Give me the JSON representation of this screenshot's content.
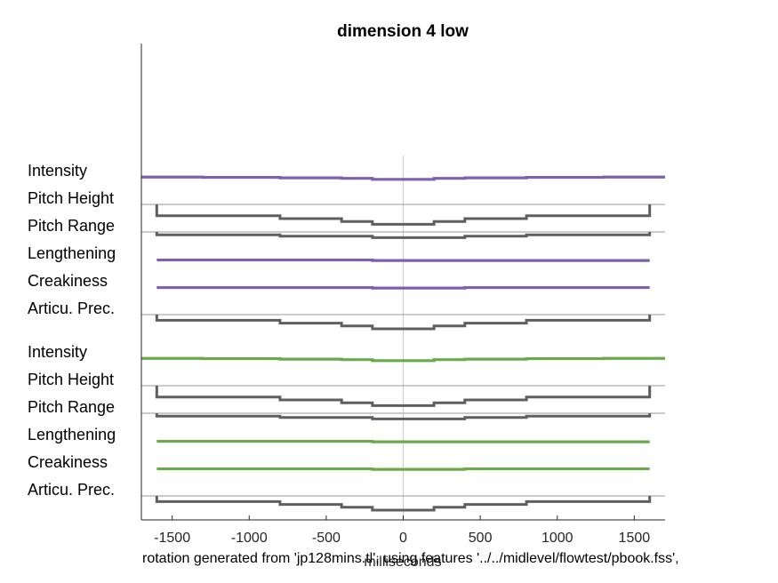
{
  "chart_data": {
    "type": "line",
    "title": "dimension  4 low",
    "xlabel": "milliseconds",
    "caption": "rotation generated from 'jp128mins.tl', using features '../../midlevel/flowtest/pbook.fss',",
    "xlim": [
      -1700,
      1700
    ],
    "x_ticks": [
      -1500,
      -1000,
      -500,
      0,
      500,
      1000,
      1500
    ],
    "vertical_line_at": 0,
    "colors": {
      "purple": "#7f5fb0",
      "green": "#6aaa4a",
      "gray": "#5f5f5f",
      "baseline": "#9a9a9a",
      "zeroline": "#d0d0d0"
    },
    "groups": [
      {
        "name": "upper",
        "rows": [
          {
            "label": "Intensity",
            "color": "purple",
            "bracket": false,
            "segments": [
              [
                -1700,
                -1300,
                0.25
              ],
              [
                -1300,
                -800,
                0.5
              ],
              [
                -800,
                -400,
                1
              ],
              [
                -400,
                -200,
                1.5
              ],
              [
                -200,
                0,
                2.5
              ],
              [
                0,
                200,
                2.5
              ],
              [
                200,
                400,
                1.5
              ],
              [
                400,
                800,
                1
              ],
              [
                800,
                1300,
                0.5
              ],
              [
                1300,
                1700,
                0.25
              ]
            ]
          },
          {
            "label": "Pitch Height",
            "color": "gray",
            "bracket": true,
            "segments": [
              [
                -1600,
                -800,
                4
              ],
              [
                -800,
                -400,
                5
              ],
              [
                -400,
                -200,
                6
              ],
              [
                -200,
                200,
                7
              ],
              [
                200,
                400,
                6
              ],
              [
                400,
                800,
                5
              ],
              [
                800,
                1600,
                4
              ]
            ]
          },
          {
            "label": "Pitch Range",
            "color": "gray",
            "bracket": true,
            "segments": [
              [
                -1600,
                -800,
                1
              ],
              [
                -800,
                -200,
                1.5
              ],
              [
                -200,
                400,
                2
              ],
              [
                400,
                800,
                1.5
              ],
              [
                800,
                1600,
                1
              ]
            ]
          },
          {
            "label": "Lengthening",
            "color": "purple",
            "bracket": false,
            "segments": [
              [
                -1600,
                -800,
                0.5
              ],
              [
                -800,
                -200,
                0.5
              ],
              [
                -200,
                400,
                1
              ],
              [
                400,
                800,
                1
              ],
              [
                800,
                1600,
                1
              ]
            ]
          },
          {
            "label": "Creakiness",
            "color": "purple",
            "bracket": false,
            "segments": [
              [
                -1600,
                -800,
                0.5
              ],
              [
                -800,
                -200,
                0.5
              ],
              [
                -200,
                400,
                1
              ],
              [
                400,
                800,
                0.5
              ],
              [
                800,
                1600,
                0.5
              ]
            ]
          },
          {
            "label": "Articu. Prec.",
            "color": "gray",
            "bracket": true,
            "segments": [
              [
                -1600,
                -800,
                2
              ],
              [
                -800,
                -400,
                3
              ],
              [
                -400,
                -200,
                4
              ],
              [
                -200,
                200,
                5
              ],
              [
                200,
                400,
                4
              ],
              [
                400,
                800,
                3
              ],
              [
                800,
                1600,
                2
              ]
            ]
          }
        ]
      },
      {
        "name": "lower",
        "rows": [
          {
            "label": "Intensity",
            "color": "green",
            "bracket": false,
            "segments": [
              [
                -1700,
                -1300,
                0.25
              ],
              [
                -1300,
                -800,
                0.5
              ],
              [
                -800,
                -400,
                1
              ],
              [
                -400,
                -200,
                1.5
              ],
              [
                -200,
                0,
                2.5
              ],
              [
                0,
                200,
                2.5
              ],
              [
                200,
                400,
                1.5
              ],
              [
                400,
                800,
                1
              ],
              [
                800,
                1300,
                0.5
              ],
              [
                1300,
                1700,
                0.25
              ]
            ]
          },
          {
            "label": "Pitch Height",
            "color": "gray",
            "bracket": true,
            "segments": [
              [
                -1600,
                -800,
                4
              ],
              [
                -800,
                -400,
                5
              ],
              [
                -400,
                -200,
                6
              ],
              [
                -200,
                200,
                7
              ],
              [
                200,
                400,
                6
              ],
              [
                400,
                800,
                5
              ],
              [
                800,
                1600,
                4
              ]
            ]
          },
          {
            "label": "Pitch Range",
            "color": "gray",
            "bracket": true,
            "segments": [
              [
                -1600,
                -800,
                1
              ],
              [
                -800,
                -200,
                1.5
              ],
              [
                -200,
                400,
                2
              ],
              [
                400,
                800,
                1.5
              ],
              [
                800,
                1600,
                1
              ]
            ]
          },
          {
            "label": "Lengthening",
            "color": "green",
            "bracket": false,
            "segments": [
              [
                -1600,
                -800,
                0.5
              ],
              [
                -800,
                -200,
                0.5
              ],
              [
                -200,
                400,
                1
              ],
              [
                400,
                800,
                1
              ],
              [
                800,
                1600,
                1
              ]
            ]
          },
          {
            "label": "Creakiness",
            "color": "green",
            "bracket": false,
            "segments": [
              [
                -1600,
                -800,
                0.5
              ],
              [
                -800,
                -200,
                0.5
              ],
              [
                -200,
                400,
                1
              ],
              [
                400,
                800,
                0.5
              ],
              [
                800,
                1600,
                0.5
              ]
            ]
          },
          {
            "label": "Articu. Prec.",
            "color": "gray",
            "bracket": true,
            "segments": [
              [
                -1600,
                -800,
                2
              ],
              [
                -800,
                -400,
                3
              ],
              [
                -400,
                -200,
                4
              ],
              [
                -200,
                200,
                5
              ],
              [
                200,
                400,
                4
              ],
              [
                400,
                800,
                3
              ],
              [
                800,
                1600,
                2
              ]
            ]
          }
        ]
      }
    ]
  }
}
